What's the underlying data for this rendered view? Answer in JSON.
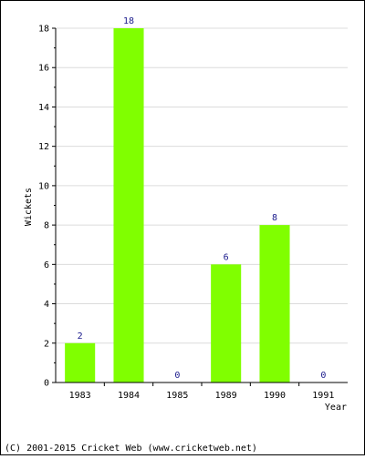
{
  "chart_data": {
    "type": "bar",
    "categories": [
      "1983",
      "1984",
      "1985",
      "1989",
      "1990",
      "1991"
    ],
    "values": [
      2,
      18,
      0,
      6,
      8,
      0
    ],
    "data_labels": [
      "2",
      "18",
      "0",
      "6",
      "8",
      "0"
    ],
    "yticks": [
      "0",
      "2",
      "4",
      "6",
      "8",
      "10",
      "12",
      "14",
      "16",
      "18"
    ],
    "ylim": [
      0,
      18
    ],
    "xlabel": "Year",
    "ylabel": "Wickets",
    "grid": true,
    "bar_color": "#80ff00",
    "label_color": "#1a1a8c"
  },
  "footer": {
    "copyright": "(C) 2001-2015 Cricket Web (www.cricketweb.net)"
  }
}
